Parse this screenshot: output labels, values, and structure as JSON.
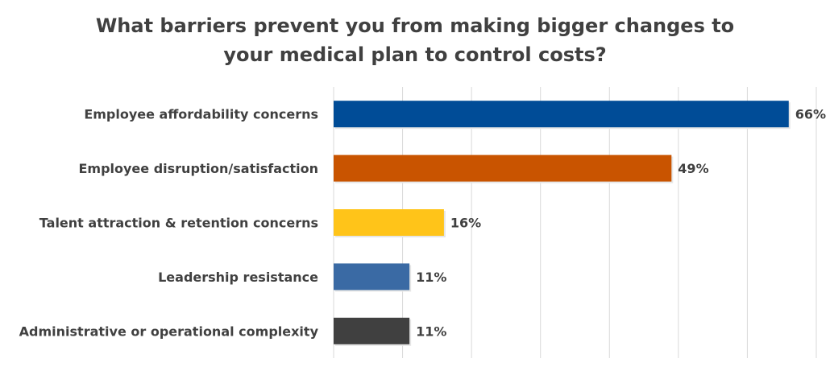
{
  "chart_data": {
    "type": "bar",
    "orientation": "horizontal",
    "title_lines": [
      "What barriers prevent you from making bigger changes to",
      "your medical plan to control costs?"
    ],
    "categories": [
      "Employee affordability concerns",
      "Employee disruption/satisfaction",
      "Talent attraction & retention concerns",
      "Leadership resistance",
      "Administrative or operational complexity"
    ],
    "values": [
      66,
      49,
      16,
      11,
      11
    ],
    "labels": [
      "66%",
      "49%",
      "16%",
      "11%",
      "11%"
    ],
    "colors": [
      "#004C97",
      "#C95400",
      "#FFC419",
      "#3A6AA4",
      "#404040"
    ],
    "xlim": [
      0,
      70
    ],
    "grid_step": 10,
    "grid": true,
    "xlabel": "",
    "ylabel": ""
  }
}
